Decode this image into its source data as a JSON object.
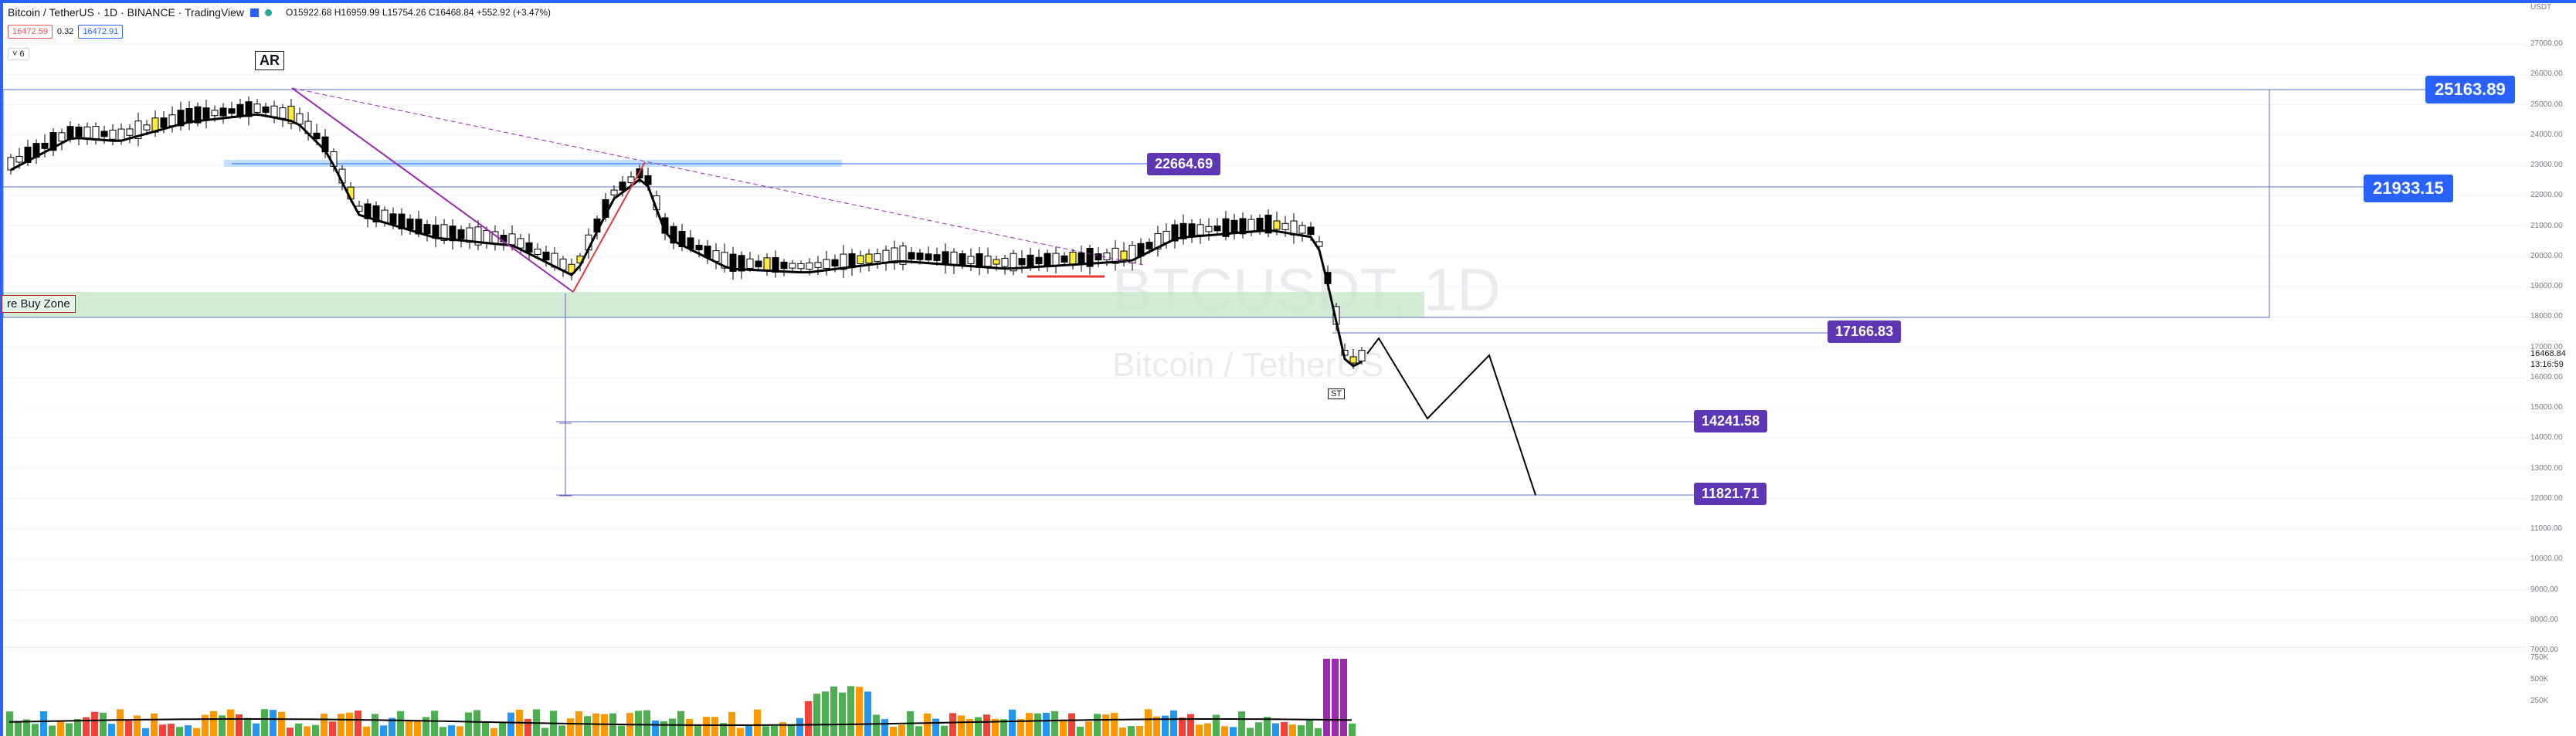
{
  "legend": {
    "symbol": "Bitcoin / TetherUS · 1D · BINANCE · TradingView",
    "ohlc": "O15922.68 H16959.99 L15754.26 C16468.84 +552.92 (+3.47%)",
    "sell": "16472.59",
    "spread": "0.32",
    "buy": "16472.91",
    "indicator": "6"
  },
  "quote": "USDT",
  "watermark": {
    "ticker": "BTCUSDT, 1D",
    "name": "Bitcoin / TetherUS"
  },
  "annotations": {
    "ar": "AR",
    "st": "ST",
    "zone": "re Buy Zone"
  },
  "levels": [
    {
      "label": "25163.89",
      "style": "blue"
    },
    {
      "label": "21933.15",
      "style": "blue"
    },
    {
      "label": "22664.69",
      "style": "purple"
    },
    {
      "label": "17166.83",
      "style": "purple"
    },
    {
      "label": "14241.58",
      "style": "purple"
    },
    {
      "label": "11821.71",
      "style": "purple"
    }
  ],
  "price_axis": [
    "27000.00",
    "26000.00",
    "25000.00",
    "24000.00",
    "23000.00",
    "22000.00",
    "21000.00",
    "20000.00",
    "19000.00",
    "18000.00",
    "17000.00",
    "16000.00",
    "15000.00",
    "14000.00",
    "13000.00",
    "12000.00",
    "11000.00",
    "10000.00",
    "9000.00",
    "8000.00",
    "7000.00"
  ],
  "current_price": "16468.84",
  "countdown": "13:16:59",
  "volume_axis": [
    "750K",
    "500K",
    "250K"
  ],
  "colors": {
    "up": "#ffffff",
    "down": "#000000",
    "accent": "#2962ff",
    "level": "#5d37b5",
    "zone": "#c8e6c9",
    "vol_orange": "#ff9800",
    "vol_green": "#4caf50",
    "vol_blue": "#2196f3",
    "vol_red": "#f44336",
    "vol_purple": "#9c27b0"
  }
}
